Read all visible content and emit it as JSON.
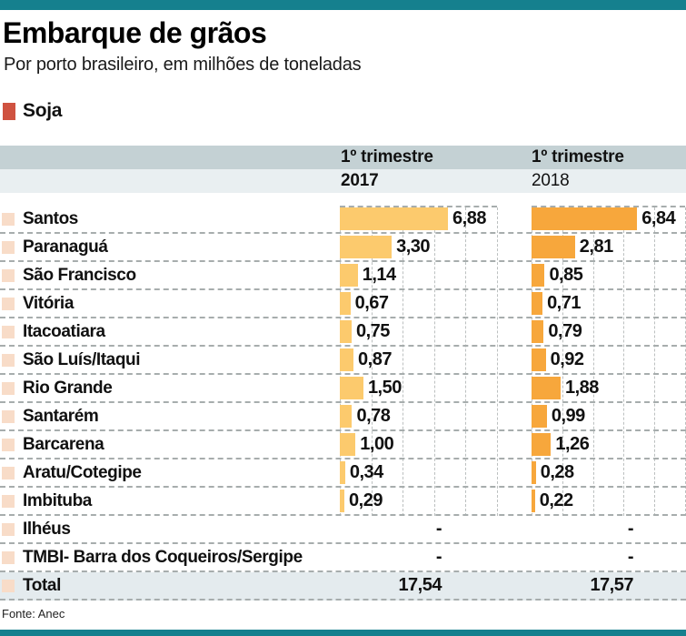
{
  "page": {
    "title": "Embarque de grãos",
    "subtitle": "Por porto brasileiro, em milhões de toneladas",
    "source": "Fonte: Anec"
  },
  "legend": {
    "label": "Soja"
  },
  "columns": [
    {
      "period": "1º trimestre",
      "year": "2017"
    },
    {
      "period": "1º trimestre",
      "year": "2018"
    }
  ],
  "chart_data": {
    "type": "bar",
    "orientation": "horizontal",
    "title": "Embarque de grãos",
    "subtitle": "Por porto brasileiro, em milhões de toneladas",
    "unit": "milhões de toneladas",
    "legend": [
      "Soja"
    ],
    "axis_max": 10,
    "gridline_step": 2,
    "grid": true,
    "categories": [
      "Santos",
      "Paranaguá",
      "São Francisco",
      "Vitória",
      "Itacoatiara",
      "São Luís/Itaqui",
      "Rio Grande",
      "Santarém",
      "Barcarena",
      "Aratu/Cotegipe",
      "Imbituba",
      "Ilhéus",
      "TMBI- Barra dos Coqueiros/Sergipe"
    ],
    "series": [
      {
        "name": "1º trimestre 2017",
        "values": [
          6.88,
          3.3,
          1.14,
          0.67,
          0.75,
          0.87,
          1.5,
          0.78,
          1.0,
          0.34,
          0.29,
          null,
          null
        ],
        "display": [
          "6,88",
          "3,30",
          "1,14",
          "0,67",
          "0,75",
          "0,87",
          "1,50",
          "0,78",
          "1,00",
          "0,34",
          "0,29",
          "-",
          "-"
        ],
        "total": 17.54,
        "total_display": "17,54"
      },
      {
        "name": "1º trimestre 2018",
        "values": [
          6.84,
          2.81,
          0.85,
          0.71,
          0.79,
          0.92,
          1.88,
          0.99,
          1.26,
          0.28,
          0.22,
          null,
          null
        ],
        "display": [
          "6,84",
          "2,81",
          "0,85",
          "0,71",
          "0,79",
          "0,92",
          "1,88",
          "0,99",
          "1,26",
          "0,28",
          "0,22",
          "-",
          "-"
        ],
        "total": 17.57,
        "total_display": "17,57"
      }
    ],
    "total_label": "Total"
  },
  "colors": {
    "accent_bar": "#15808e",
    "legend_soja": "#cf5240",
    "bar_2017": "#fcca6d",
    "bar_2018": "#f7a73c",
    "row_swatch": "#f8dcc8",
    "header_band_dark": "#c4d1d4",
    "header_band_light": "#e9eff1",
    "total_row_bg": "#e4ebee",
    "dash_line": "#a7adad",
    "grid_line": "#bcc0c0"
  }
}
